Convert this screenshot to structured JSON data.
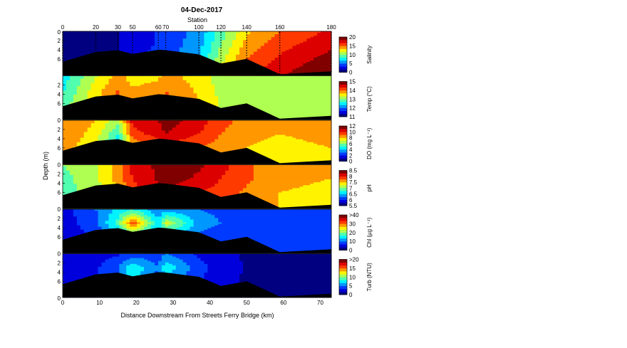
{
  "chart_data": {
    "type": "heatmap",
    "title": "04-Dec-2017",
    "xlabel": "Distance Downstream From Streets Ferry Bridge (km)",
    "ylabel": "Depth (m)",
    "top_axis_label": "Station",
    "xlim": [
      0,
      73
    ],
    "ylim": [
      0,
      9.5
    ],
    "x_ticks": [
      0,
      10,
      20,
      30,
      40,
      50,
      60,
      70
    ],
    "depth_ticks": [
      2,
      4,
      6
    ],
    "top_depth_tick": "0",
    "stations": [
      {
        "label": "0",
        "km": 0
      },
      {
        "label": "20",
        "km": 9
      },
      {
        "label": "30",
        "km": 15
      },
      {
        "label": "50",
        "km": 19
      },
      {
        "label": "60",
        "km": 26
      },
      {
        "label": "70",
        "km": 28
      },
      {
        "label": "100",
        "km": 37
      },
      {
        "label": "120",
        "km": 43
      },
      {
        "label": "140",
        "km": 50
      },
      {
        "label": "160",
        "km": 59
      },
      {
        "label": "180",
        "km": 73
      }
    ],
    "bottom_profile": [
      {
        "km": 0,
        "depth": 6.6
      },
      {
        "km": 9,
        "depth": 4.5
      },
      {
        "km": 15,
        "depth": 4.1
      },
      {
        "km": 19,
        "depth": 4.9
      },
      {
        "km": 26,
        "depth": 4.0
      },
      {
        "km": 28,
        "depth": 4.1
      },
      {
        "km": 37,
        "depth": 5.0
      },
      {
        "km": 43,
        "depth": 7.0
      },
      {
        "km": 50,
        "depth": 6.0
      },
      {
        "km": 59,
        "depth": 9.3
      },
      {
        "km": 73,
        "depth": 8.7
      }
    ],
    "panels": [
      {
        "variable": "Salinity",
        "colorbar_label": "Salinity",
        "clim": [
          0,
          20
        ],
        "colorbar_ticks": [
          "0",
          "5",
          "10",
          "15",
          "20"
        ],
        "show_station_lines": true,
        "x": [
          0,
          9,
          15,
          19,
          26,
          28,
          37,
          43,
          50,
          59,
          73
        ],
        "depth": [
          0,
          3,
          6,
          9
        ],
        "values": [
          [
            0,
            0.5,
            1.5,
            2.5,
            3.5,
            4,
            5.5,
            9,
            13,
            15,
            17
          ],
          [
            0,
            0.5,
            1.5,
            2.5,
            3.5,
            4,
            6,
            10,
            14,
            16,
            18
          ],
          [
            0,
            0.5,
            2,
            3,
            4,
            4.5,
            6.5,
            11,
            15,
            17,
            19
          ],
          [
            0,
            1,
            2,
            3,
            4,
            5,
            7,
            12,
            16,
            18,
            20
          ]
        ]
      },
      {
        "variable": "Temp",
        "colorbar_label": "Temp (°C)",
        "clim": [
          11,
          15
        ],
        "colorbar_ticks": [
          "11",
          "12",
          "13",
          "14",
          "15"
        ],
        "show_station_lines": false,
        "x": [
          0,
          9,
          15,
          19,
          26,
          28,
          37,
          43,
          50,
          59,
          73
        ],
        "depth": [
          0,
          3,
          6,
          9
        ],
        "values": [
          [
            12.5,
            13.3,
            13.8,
            13.5,
            13.6,
            13.8,
            13.5,
            13.2,
            13.1,
            13.0,
            13.0
          ],
          [
            12.6,
            13.5,
            14.0,
            13.7,
            13.8,
            14.0,
            13.6,
            13.2,
            13.1,
            13.0,
            13.0
          ],
          [
            12.8,
            13.6,
            14.1,
            13.9,
            14.0,
            14.1,
            13.7,
            13.3,
            13.1,
            13.0,
            13.0
          ],
          [
            12.8,
            13.6,
            14.1,
            13.9,
            14.0,
            14.1,
            13.7,
            13.3,
            13.1,
            13.0,
            13.0
          ]
        ]
      },
      {
        "variable": "DO",
        "colorbar_label": "DO (mg L⁻¹)",
        "clim": [
          0,
          12
        ],
        "colorbar_ticks": [
          "0",
          "2",
          "4",
          "6",
          "8",
          "10",
          "12"
        ],
        "show_station_lines": false,
        "x": [
          0,
          9,
          15,
          19,
          26,
          28,
          37,
          43,
          50,
          59,
          73
        ],
        "depth": [
          0,
          3,
          6,
          9
        ],
        "values": [
          [
            9,
            8,
            6.5,
            10.5,
            11,
            11.5,
            10.5,
            9.5,
            8.5,
            8.2,
            8.5
          ],
          [
            9,
            7.5,
            5,
            9.5,
            10.5,
            11,
            10,
            9,
            8.2,
            8.0,
            8.2
          ],
          [
            8.5,
            7,
            4,
            8,
            9,
            9.5,
            9,
            8.5,
            8,
            7.8,
            8
          ],
          [
            8.5,
            7,
            4,
            8,
            9,
            9.5,
            9,
            8.5,
            8,
            7.8,
            8
          ]
        ]
      },
      {
        "variable": "pH",
        "colorbar_label": "pH",
        "clim": [
          5.5,
          8.5
        ],
        "colorbar_ticks": [
          "5.5",
          "6",
          "6.5",
          "7",
          "7.5",
          "8",
          "8.5"
        ],
        "show_station_lines": false,
        "x": [
          0,
          9,
          15,
          19,
          26,
          28,
          37,
          43,
          50,
          59,
          73
        ],
        "depth": [
          0,
          3,
          6,
          9
        ],
        "values": [
          [
            7.0,
            7.2,
            7.6,
            8.1,
            8.3,
            8.4,
            8.3,
            8.1,
            7.8,
            7.6,
            7.5
          ],
          [
            6.9,
            7.2,
            7.6,
            8.0,
            8.3,
            8.4,
            8.2,
            8.0,
            7.8,
            7.6,
            7.5
          ],
          [
            6.9,
            7.1,
            7.5,
            7.9,
            8.1,
            8.2,
            8.0,
            7.9,
            7.7,
            7.5,
            7.4
          ],
          [
            6.9,
            7.1,
            7.5,
            7.9,
            8.1,
            8.2,
            8.0,
            7.9,
            7.7,
            7.5,
            7.4
          ]
        ]
      },
      {
        "variable": "Chl",
        "colorbar_label": "Chl (µg L⁻¹)",
        "clim": [
          0,
          40
        ],
        "colorbar_ticks": [
          "0",
          "10",
          "20",
          "30",
          ">40"
        ],
        "show_station_lines": false,
        "x": [
          0,
          9,
          15,
          19,
          26,
          28,
          37,
          43,
          50,
          59,
          73
        ],
        "depth": [
          0,
          3,
          6,
          9
        ],
        "values": [
          [
            5,
            10,
            14,
            16,
            10,
            11,
            10,
            9,
            8,
            7,
            7
          ],
          [
            5,
            9,
            18,
            32,
            14,
            24,
            12,
            10,
            8,
            7,
            7
          ],
          [
            4,
            7,
            12,
            16,
            10,
            12,
            9,
            8,
            7,
            7,
            7
          ],
          [
            4,
            7,
            12,
            16,
            10,
            12,
            9,
            8,
            7,
            7,
            7
          ]
        ]
      },
      {
        "variable": "Turb",
        "colorbar_label": "Turb (NTU)",
        "clim": [
          0,
          20
        ],
        "colorbar_ticks": [
          "0",
          "5",
          "10",
          "15",
          ">20"
        ],
        "show_station_lines": false,
        "x": [
          0,
          9,
          15,
          19,
          26,
          28,
          37,
          43,
          50,
          59,
          73
        ],
        "depth": [
          0,
          3,
          6,
          9
        ],
        "values": [
          [
            2,
            2.5,
            3,
            4,
            4,
            5,
            3,
            2,
            1.5,
            1,
            1
          ],
          [
            2,
            3,
            5,
            8,
            5,
            8,
            4,
            2.5,
            1.5,
            1,
            1
          ],
          [
            2,
            3,
            5,
            7,
            4,
            6,
            3.5,
            2,
            1.5,
            1,
            1
          ],
          [
            2,
            3,
            5,
            7,
            4,
            6,
            3.5,
            2,
            1.5,
            1,
            1
          ]
        ]
      }
    ]
  }
}
